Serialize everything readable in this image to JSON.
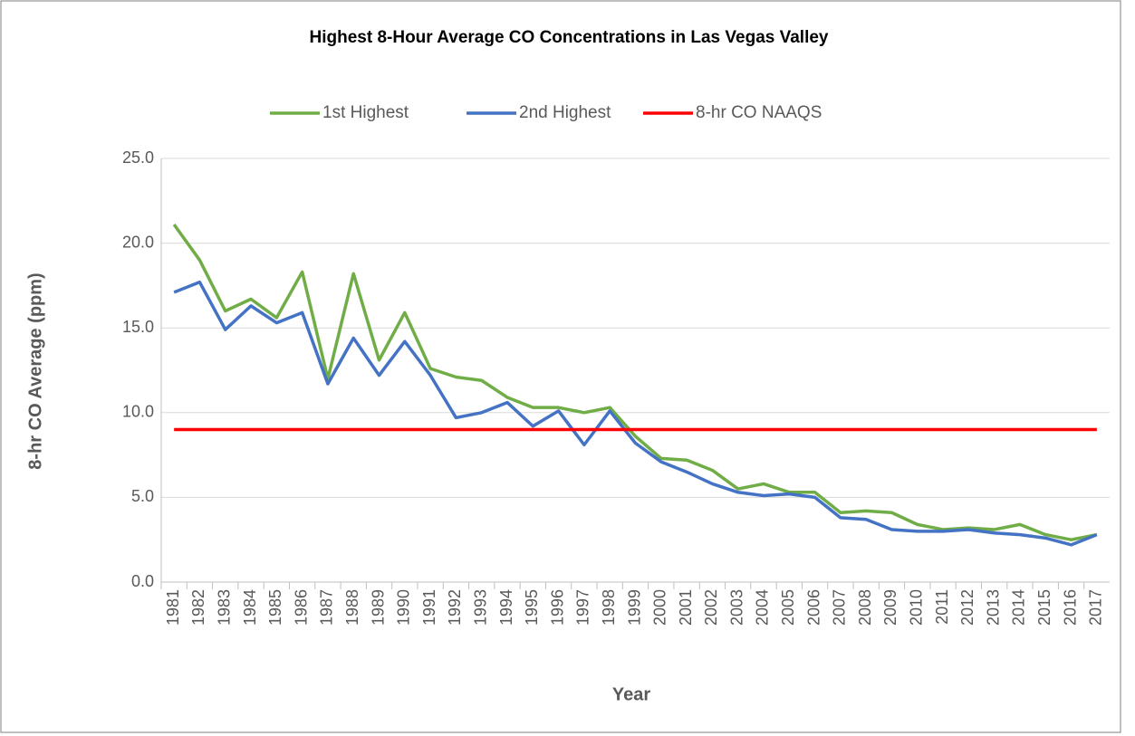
{
  "chart_data": {
    "type": "line",
    "title": "Highest 8-Hour Average CO Concentrations in Las Vegas Valley",
    "x_label": "Year",
    "y_label": "8-hr CO Average (ppm)",
    "categories": [
      "1981",
      "1982",
      "1983",
      "1984",
      "1985",
      "1986",
      "1987",
      "1988",
      "1989",
      "1990",
      "1991",
      "1992",
      "1993",
      "1994",
      "1995",
      "1996",
      "1997",
      "1998",
      "1999",
      "2000",
      "2001",
      "2002",
      "2003",
      "2004",
      "2005",
      "2006",
      "2007",
      "2008",
      "2009",
      "2010",
      "2011",
      "2012",
      "2013",
      "2014",
      "2015",
      "2016",
      "2017"
    ],
    "series": [
      {
        "name": "1st Highest",
        "color": "#70ad47",
        "values": [
          21.1,
          19.0,
          16.0,
          16.7,
          15.6,
          18.3,
          12.0,
          18.2,
          13.1,
          15.9,
          12.6,
          12.1,
          11.9,
          10.9,
          10.3,
          10.3,
          10.0,
          10.3,
          8.6,
          7.3,
          7.2,
          6.6,
          5.5,
          5.8,
          5.3,
          5.3,
          4.1,
          4.2,
          4.1,
          3.4,
          3.1,
          3.2,
          3.1,
          3.4,
          2.8,
          2.5,
          2.8
        ]
      },
      {
        "name": "2nd Highest",
        "color": "#4472c4",
        "values": [
          17.1,
          17.7,
          14.9,
          16.3,
          15.3,
          15.9,
          11.7,
          14.4,
          12.2,
          14.2,
          12.2,
          9.7,
          10.0,
          10.6,
          9.2,
          10.1,
          8.1,
          10.1,
          8.2,
          7.1,
          6.5,
          5.8,
          5.3,
          5.1,
          5.2,
          5.0,
          3.8,
          3.7,
          3.1,
          3.0,
          3.0,
          3.1,
          2.9,
          2.8,
          2.6,
          2.2,
          2.8
        ]
      },
      {
        "name": "8-hr CO NAAQS",
        "color": "#ff0000",
        "values": [
          9,
          9,
          9,
          9,
          9,
          9,
          9,
          9,
          9,
          9,
          9,
          9,
          9,
          9,
          9,
          9,
          9,
          9,
          9,
          9,
          9,
          9,
          9,
          9,
          9,
          9,
          9,
          9,
          9,
          9,
          9,
          9,
          9,
          9,
          9,
          9,
          9
        ]
      }
    ],
    "ylim": [
      0,
      25
    ],
    "yticks": [
      {
        "value": 0,
        "label": "0.0"
      },
      {
        "value": 5,
        "label": "5.0"
      },
      {
        "value": 10,
        "label": "10.0"
      },
      {
        "value": 15,
        "label": "15.0"
      },
      {
        "value": 20,
        "label": "20.0"
      },
      {
        "value": 25,
        "label": "25.0"
      }
    ],
    "grid": true,
    "legend": "top"
  }
}
